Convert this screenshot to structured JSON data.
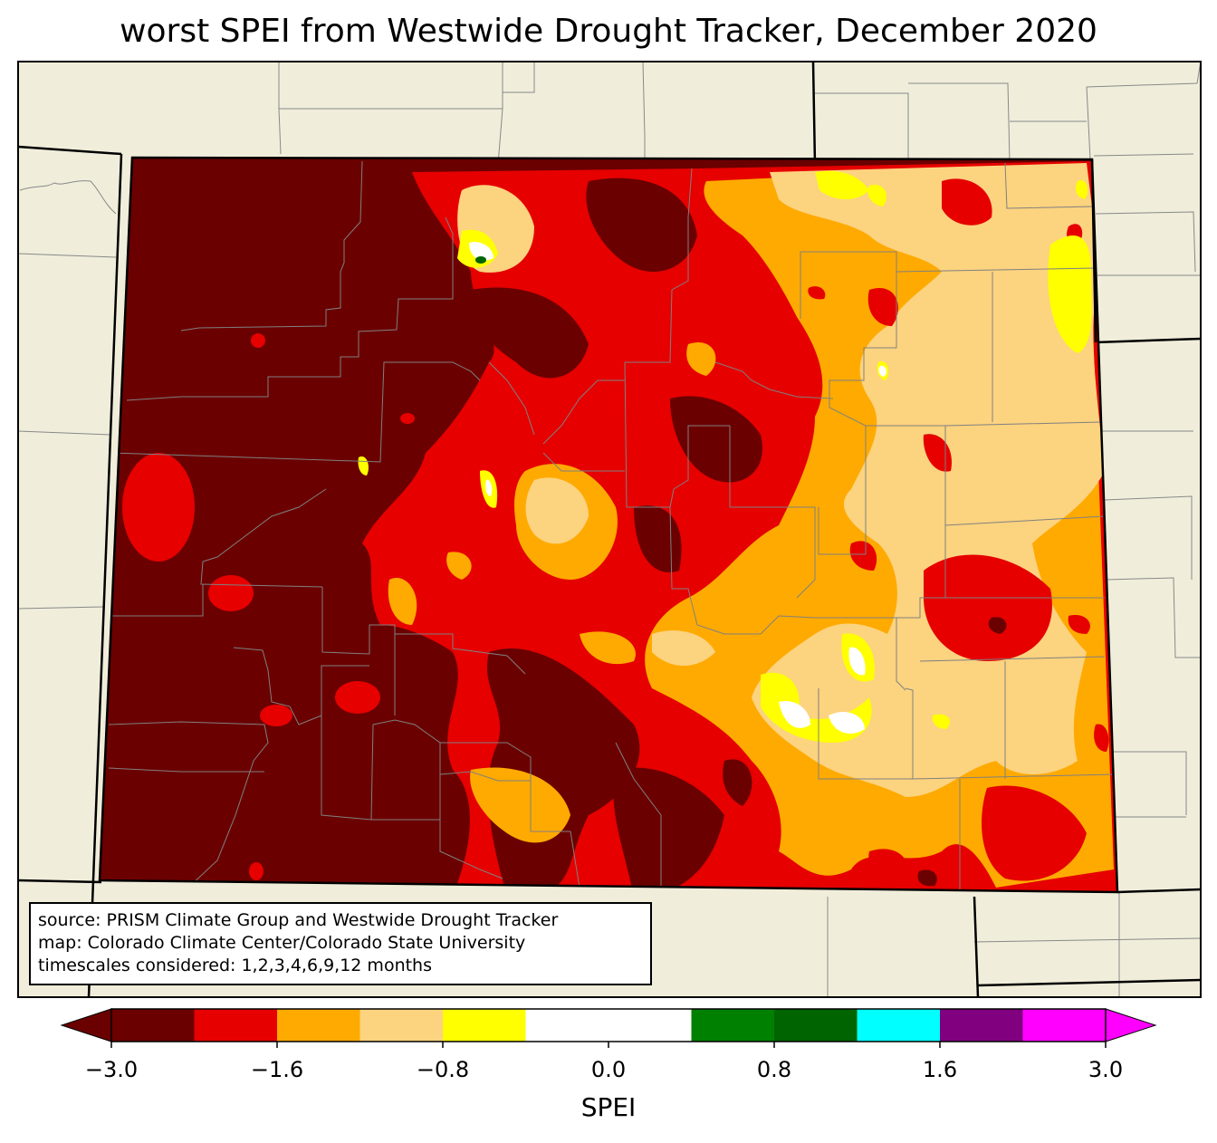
{
  "title": "worst SPEI from Westwide Drought Tracker, December 2020",
  "source_lines": [
    "source: PRISM Climate Group and Westwide Drought Tracker",
    "map: Colorado Climate Center/Colorado State University",
    "timescales considered: 1,2,3,4,6,9,12 months"
  ],
  "colorbar": {
    "label": "SPEI",
    "extend": "both",
    "bins": [
      {
        "color": "#6b0000"
      },
      {
        "color": "#e60000"
      },
      {
        "color": "#ffaa00"
      },
      {
        "color": "#fcd37f"
      },
      {
        "color": "#ffff00"
      },
      {
        "color": "#ffffff"
      },
      {
        "color": "#ffffff"
      },
      {
        "color": "#008000"
      },
      {
        "color": "#006400"
      },
      {
        "color": "#00ffff"
      },
      {
        "color": "#800080"
      },
      {
        "color": "#ff00ff"
      }
    ],
    "ticks": [
      "−3.0",
      "−1.6",
      "−0.8",
      "0.0",
      "0.8",
      "1.6",
      "3.0"
    ]
  },
  "map": {
    "land_color": "#f0eedb",
    "state": "Colorado",
    "field_colors": {
      "extreme": "#6b0000",
      "severe": "#e60000",
      "moderate": "#ffaa00",
      "mild": "#fcd37f",
      "near_dry": "#ffff00",
      "normal": "#ffffff",
      "wet": "#006400"
    }
  }
}
